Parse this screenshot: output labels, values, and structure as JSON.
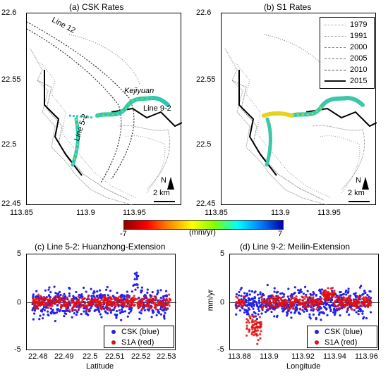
{
  "panels": {
    "a_title": "(a) CSK Rates",
    "b_title": "(b) S1 Rates",
    "c_title": "(c) Line 5-2: Huanzhong-Extension",
    "d_title": "(d) Line 9-2: Meilin-Extension"
  },
  "map": {
    "lat_ticks": [
      "22.6",
      "22.55",
      "22.5",
      "22.45"
    ],
    "lon_ticks": [
      "113.85",
      "113.9",
      "113.95"
    ],
    "labels": {
      "line12": "Line 12",
      "kejiyuan": "Kejiyuan",
      "line92": "Line 9-2",
      "line52": "Line 5-2"
    },
    "scale": "2 km",
    "north": "N",
    "legend_years": [
      "1979",
      "1991",
      "2000",
      "2005",
      "2010",
      "2015"
    ],
    "legend_colors": [
      "#9aa3b0",
      "#8a93a2",
      "#7a8495",
      "#626c7e",
      "#3c4658",
      "#111111"
    ]
  },
  "colorbar": {
    "min_label": "-7",
    "max_label": "7",
    "unit_label": "(mm/yr)",
    "stops": [
      "#8b0000",
      "#ff0000",
      "#ff8c00",
      "#ffff00",
      "#7fff00",
      "#00ffff",
      "#0080ff",
      "#0000aa"
    ]
  },
  "colors": {
    "csk": "#2222ee",
    "s1a": "#e01010"
  },
  "plots": {
    "c": {
      "xticks": [
        "22.48",
        "22.49",
        "22.5",
        "22.51",
        "22.52",
        "22.53"
      ],
      "xlabel": "Latitude"
    },
    "d": {
      "xticks": [
        "113.88",
        "113.9",
        "113.92",
        "113.94",
        "113.96"
      ],
      "xlabel": "Longitude",
      "ylabel": "mm/yr"
    },
    "yticks": [
      "5",
      "0",
      "-5"
    ],
    "legend": {
      "csk": "CSK (blue)",
      "s1a": "S1A (red)"
    }
  },
  "chart_data": [
    {
      "type": "scatter",
      "title": "(c) Line 5-2: Huanzhong-Extension",
      "xlabel": "Latitude",
      "ylabel": "",
      "xlim": [
        22.475,
        22.532
      ],
      "ylim": [
        -5,
        5
      ],
      "series": [
        {
          "name": "CSK (blue)",
          "note": "dense cloud mostly between -2 and 2 mm/yr, spike to ~4 near 22.512"
        },
        {
          "name": "S1A (red)",
          "note": "dense cloud near 0 mm/yr from 22.48 to 22.525"
        }
      ]
    },
    {
      "type": "scatter",
      "title": "(d) Line 9-2: Meilin-Extension",
      "xlabel": "Longitude",
      "ylabel": "mm/yr",
      "xlim": [
        113.875,
        113.965
      ],
      "ylim": [
        -5,
        5
      ],
      "series": [
        {
          "name": "CSK (blue)",
          "note": "dense cloud mostly between -2 and 2 mm/yr"
        },
        {
          "name": "S1A (red)",
          "note": "near 0 mm/yr, dip to about -3 near 113.89, bump to ~1 near 113.945"
        }
      ]
    }
  ]
}
